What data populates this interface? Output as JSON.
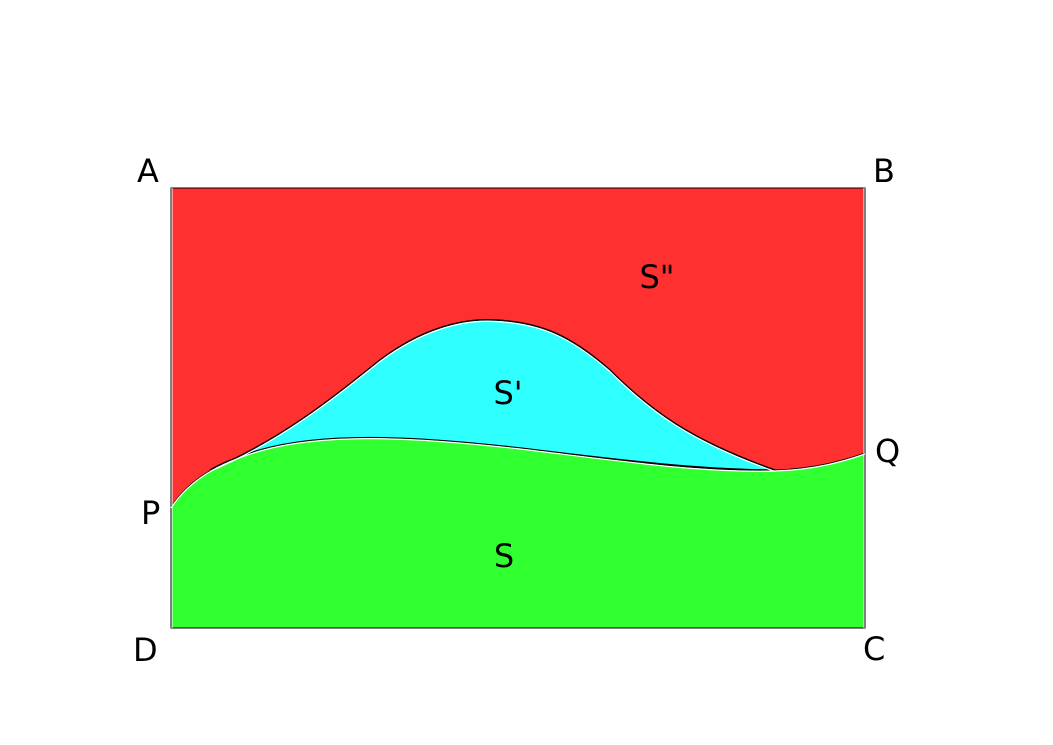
{
  "colors": {
    "region_top": "#ff3030",
    "region_middle": "#30ffff",
    "region_bottom": "#30ff30",
    "outline": "#000000"
  },
  "vertices": {
    "a": "A",
    "b": "B",
    "c": "C",
    "d": "D",
    "p": "P",
    "q": "Q"
  },
  "regions": {
    "top": "S\"",
    "middle": "S'",
    "bottom": "S"
  }
}
